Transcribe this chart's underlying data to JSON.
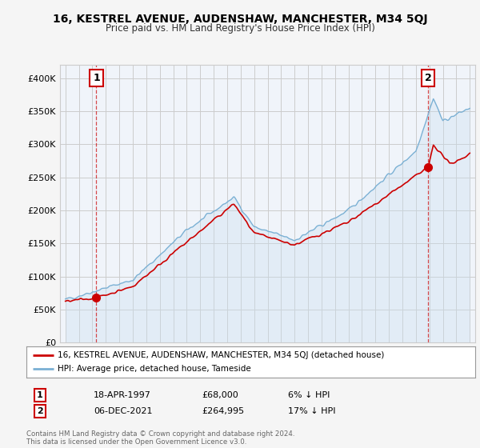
{
  "title": "16, KESTREL AVENUE, AUDENSHAW, MANCHESTER, M34 5QJ",
  "subtitle": "Price paid vs. HM Land Registry's House Price Index (HPI)",
  "legend_line1": "16, KESTREL AVENUE, AUDENSHAW, MANCHESTER, M34 5QJ (detached house)",
  "legend_line2": "HPI: Average price, detached house, Tameside",
  "annotation1_date": "18-APR-1997",
  "annotation1_price": "£68,000",
  "annotation1_hpi": "6% ↓ HPI",
  "annotation2_date": "06-DEC-2021",
  "annotation2_price": "£264,995",
  "annotation2_hpi": "17% ↓ HPI",
  "footnote": "Contains HM Land Registry data © Crown copyright and database right 2024.\nThis data is licensed under the Open Government Licence v3.0.",
  "red_color": "#cc0000",
  "blue_color": "#7ab0d4",
  "blue_fill": "#c8dff0",
  "background_color": "#f5f5f5",
  "plot_bg_color": "#f0f4fa",
  "grid_color": "#cccccc",
  "ylim": [
    0,
    420000
  ],
  "yticks": [
    0,
    50000,
    100000,
    150000,
    200000,
    250000,
    300000,
    350000,
    400000
  ],
  "sale1_year": 1997.3,
  "sale1_price": 68000,
  "sale2_year": 2021.92,
  "sale2_price": 264995
}
